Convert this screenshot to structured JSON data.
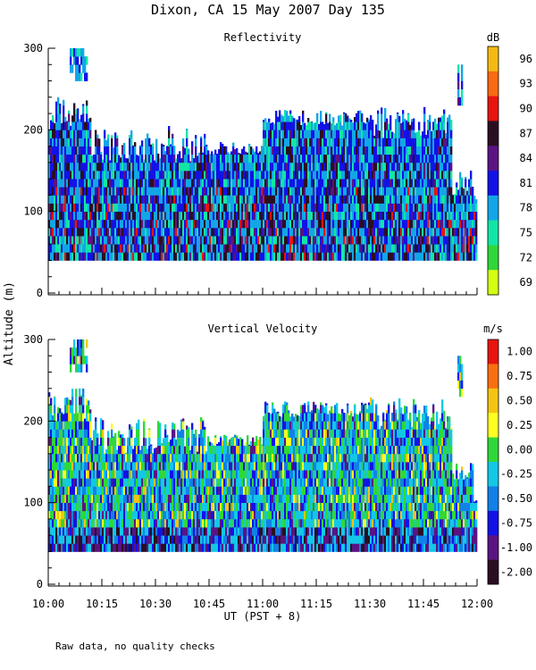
{
  "figure": {
    "title": "Dixon, CA 15 May 2007  Day 135",
    "ylabel": "Altitude (m)",
    "xlabel": "UT  (PST + 8)",
    "footnote": "Raw data, no quality checks"
  },
  "chart_data": [
    {
      "type": "heatmap",
      "title": "Reflectivity",
      "colorbar_unit": "dB",
      "colorbar_ticks": [
        "96",
        "93",
        "90",
        "87",
        "84",
        "81",
        "78",
        "75",
        "72",
        "69"
      ],
      "colorbar_colors": [
        "#f5ba12",
        "#f96a12",
        "#e8140e",
        "#2a0f22",
        "#5b1382",
        "#1212e6",
        "#12a6e6",
        "#12e6a6",
        "#2fd838",
        "#d4ff12"
      ],
      "xlabel": "UT  (PST + 8)",
      "ylabel": "Altitude (m)",
      "x_ticks": [
        "10:00",
        "10:15",
        "10:30",
        "10:45",
        "11:00",
        "11:15",
        "11:30",
        "11:45",
        "12:00"
      ],
      "y_ticks": [
        "0",
        "100",
        "200",
        "300"
      ],
      "ylim": [
        0,
        300
      ],
      "x_range": [
        "10:00",
        "12:00"
      ],
      "data_altitude_range_m": [
        40,
        280
      ]
    },
    {
      "type": "heatmap",
      "title": "Vertical Velocity",
      "colorbar_unit": "m/s",
      "colorbar_ticks": [
        "1.00",
        "0.75",
        "0.50",
        "0.25",
        "0.00",
        "-0.25",
        "-0.50",
        "-0.75",
        "-1.00",
        "-2.00"
      ],
      "colorbar_colors": [
        "#e8140e",
        "#f97012",
        "#f5c412",
        "#ffff22",
        "#2fd838",
        "#12c8e6",
        "#1280e6",
        "#1212e6",
        "#5b1382",
        "#2a0f22"
      ],
      "xlabel": "UT  (PST + 8)",
      "ylabel": "Altitude (m)",
      "x_ticks": [
        "10:00",
        "10:15",
        "10:30",
        "10:45",
        "11:00",
        "11:15",
        "11:30",
        "11:45",
        "12:00"
      ],
      "y_ticks": [
        "0",
        "100",
        "200",
        "300"
      ],
      "ylim": [
        0,
        300
      ],
      "x_range": [
        "10:00",
        "12:00"
      ],
      "data_altitude_range_m": [
        40,
        280
      ]
    }
  ]
}
